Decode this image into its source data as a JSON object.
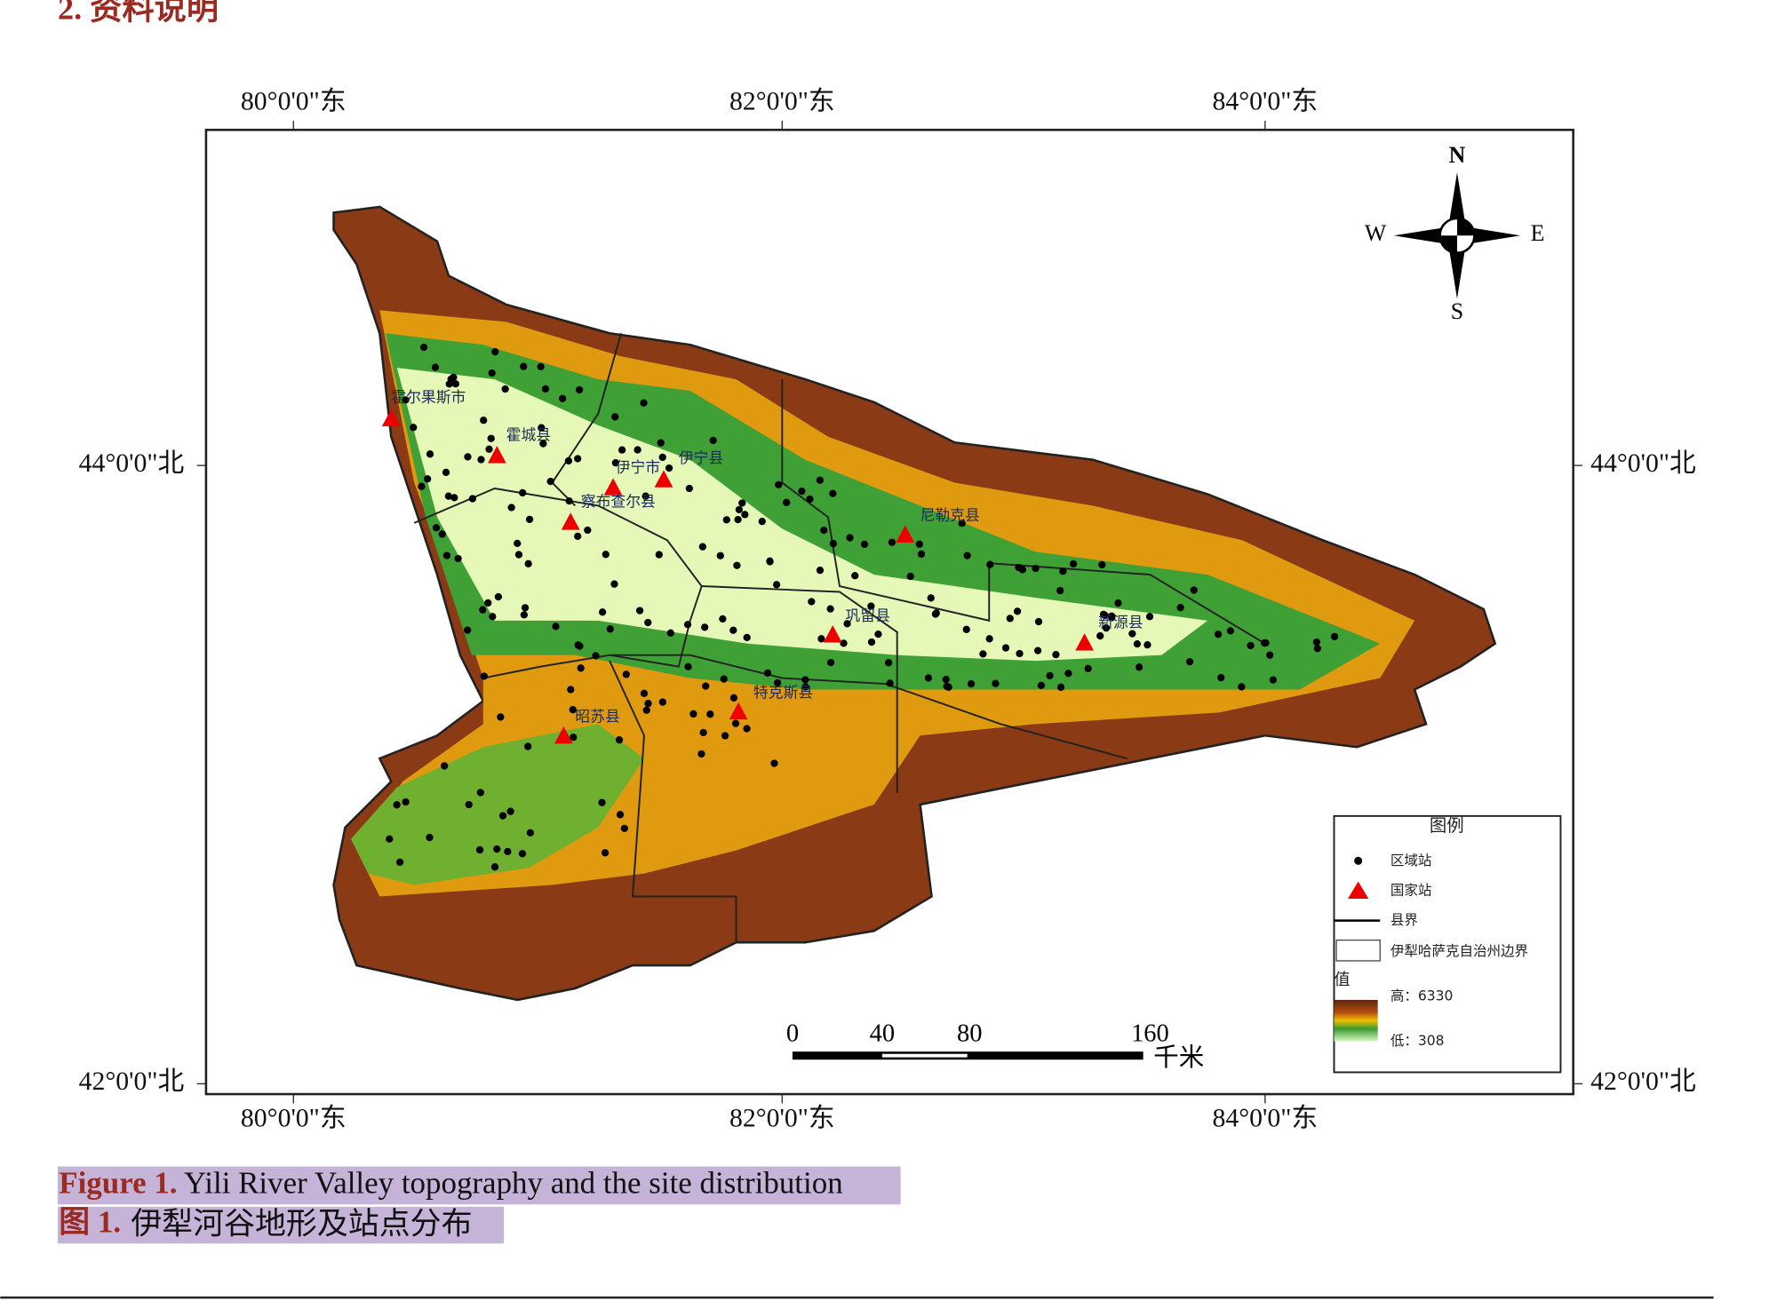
{
  "header": {
    "section": "2. 资料说明"
  },
  "figure": {
    "top_labels": [
      "80°0'0\"东",
      "82°0'0\"东",
      "84°0'0\"东"
    ],
    "bottom_labels": [
      "80°0'0\"东",
      "82°0'0\"东",
      "84°0'0\"东"
    ],
    "left_labels": [
      "44°0'0\"北",
      "42°0'0\"北"
    ],
    "right_labels": [
      "44°0'0\"北",
      "42°0'0\"北"
    ],
    "compass": {
      "n": "N",
      "s": "S",
      "e": "E",
      "w": "W"
    },
    "places": [
      "霍尔果斯市",
      "霍城县",
      "伊宁市",
      "伊宁县",
      "察布查尔县",
      "尼勒克县",
      "巩留县",
      "新源县",
      "特克斯县",
      "昭苏县"
    ],
    "scale_bar": {
      "ticks": [
        "0",
        "40",
        "80",
        "160"
      ],
      "unit": "千米"
    },
    "legend": {
      "title": "图例",
      "regional": "区域站",
      "national": "国家站",
      "county": "县界",
      "prefecture": "伊犁哈萨克自治州边界",
      "value": "值",
      "high": "高：6330",
      "low": "低：308"
    }
  },
  "caption": {
    "en_label": "Figure 1.",
    "en_text": " Yili River Valley topography and the site distribution",
    "zh_label": "图 1.",
    "zh_text": "  伊犁河谷地形及站点分布"
  }
}
